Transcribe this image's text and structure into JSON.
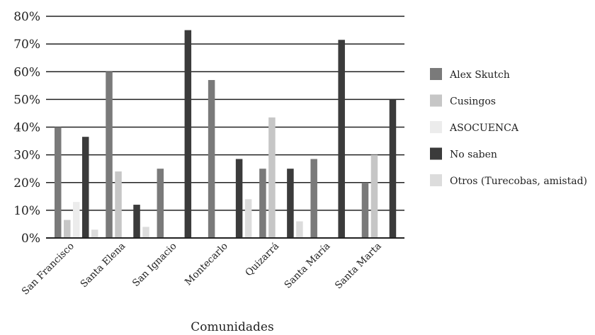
{
  "chart_data": {
    "type": "bar",
    "categories": [
      "San Francisco",
      "Santa Elena",
      "San Ignacio",
      "Montecarlo",
      "Quizarrá",
      "Santa María",
      "Santa Marta"
    ],
    "series": [
      {
        "name": "Alex Skutch",
        "color": "#7a7a7a",
        "values": [
          40,
          60,
          25,
          57,
          25,
          28.5,
          20
        ]
      },
      {
        "name": "Cusingos",
        "color": "#c6c6c6",
        "values": [
          6.5,
          24,
          0,
          0,
          43.5,
          0,
          30
        ]
      },
      {
        "name": "ASOCUENCA",
        "color": "#ececec",
        "values": [
          13,
          0,
          0,
          0,
          0,
          0,
          0
        ]
      },
      {
        "name": "No saben",
        "color": "#3b3b3b",
        "values": [
          36.5,
          12,
          75,
          28.5,
          25,
          71.5,
          50
        ]
      },
      {
        "name": "Otros (Turecobas, amistad)",
        "color": "#dcdcdc",
        "values": [
          3,
          4,
          0,
          14,
          6,
          0,
          0
        ]
      }
    ],
    "y_ticks": [
      "0%",
      "10%",
      "20%",
      "30%",
      "40%",
      "50%",
      "60%",
      "70%",
      "80%"
    ],
    "ylim": [
      0,
      80
    ],
    "xlabel": "Comunidades",
    "ylabel": "",
    "title": "",
    "grid": true,
    "legend_position": "right"
  }
}
